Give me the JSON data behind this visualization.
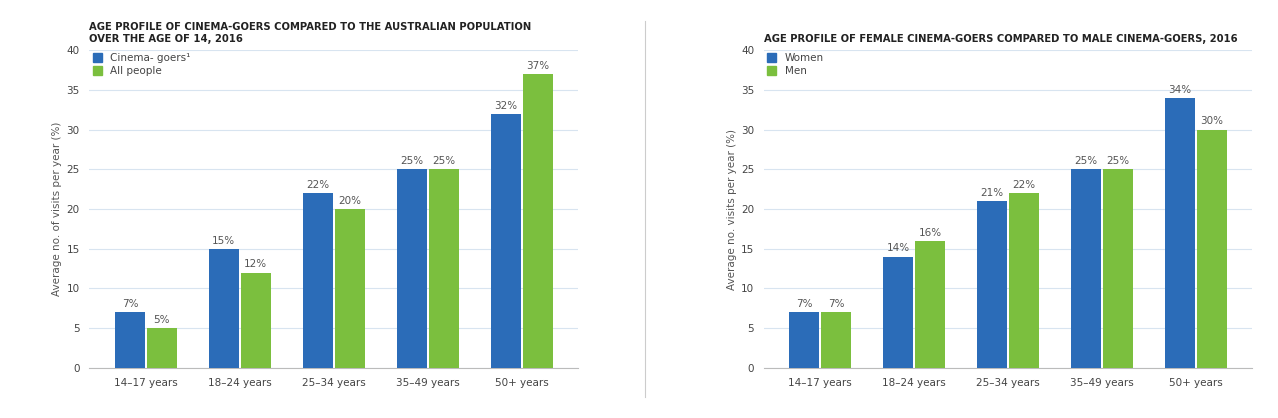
{
  "chart1": {
    "title_line1": "AGE PROFILE OF CINEMA-GOERS COMPARED TO THE AUSTRALIAN POPULATION",
    "title_line2": "OVER THE AGE OF 14, 2016",
    "categories": [
      "14–17 years",
      "18–24 years",
      "25–34 years",
      "35–49 years",
      "50+ years"
    ],
    "series1_label": "Cinema- goers¹",
    "series2_label": "All people",
    "series1_values": [
      7,
      15,
      22,
      25,
      32
    ],
    "series2_values": [
      5,
      12,
      20,
      25,
      37
    ],
    "series1_color": "#2b6cb8",
    "series2_color": "#7bbf3e",
    "ylabel": "Average no. of visits per year (%)",
    "ylim": [
      0,
      40
    ],
    "yticks": [
      0,
      5,
      10,
      15,
      20,
      25,
      30,
      35,
      40
    ]
  },
  "chart2": {
    "title_line1": "AGE PROFILE OF FEMALE CINEMA-GOERS COMPARED TO MALE CINEMA-GOERS, 2016",
    "categories": [
      "14–17 years",
      "18–24 years",
      "25–34 years",
      "35–49 years",
      "50+ years"
    ],
    "series1_label": "Women",
    "series2_label": "Men",
    "series1_values": [
      7,
      14,
      21,
      25,
      34
    ],
    "series2_values": [
      7,
      16,
      22,
      25,
      30
    ],
    "series1_color": "#2b6cb8",
    "series2_color": "#7bbf3e",
    "ylabel": "Average no. visits per year (%)",
    "ylim": [
      0,
      40
    ],
    "yticks": [
      0,
      5,
      10,
      15,
      20,
      25,
      30,
      35,
      40
    ]
  },
  "background_color": "#ffffff",
  "plot_bg_color": "#ffffff",
  "grid_color": "#d8e4f0",
  "title_fontsize": 7.2,
  "bar_label_fontsize": 7.5,
  "legend_fontsize": 7.5,
  "ylabel_fontsize": 7.5,
  "xtick_fontsize": 7.5,
  "ytick_fontsize": 7.5,
  "bar_width": 0.32,
  "bar_gap": 0.02
}
